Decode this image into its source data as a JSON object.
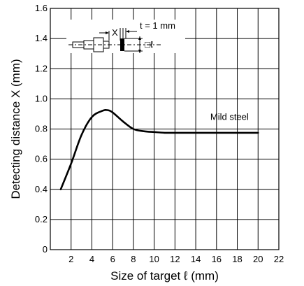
{
  "chart_data": {
    "type": "line",
    "xlabel": "Size of target ℓ (mm)",
    "ylabel": "Detecting distance X (mm)",
    "xlim": [
      0,
      22
    ],
    "ylim": [
      0,
      1.6
    ],
    "xticks": [
      2,
      4,
      6,
      8,
      10,
      12,
      14,
      16,
      18,
      20,
      22
    ],
    "yticks": [
      0,
      0.2,
      0.4,
      0.6,
      0.8,
      1.0,
      1.2,
      1.4,
      1.6
    ],
    "xtick_labels": [
      "2",
      "4",
      "6",
      "8",
      "10",
      "12",
      "14",
      "16",
      "18",
      "20",
      "22"
    ],
    "ytick_labels": [
      "0",
      "0.2",
      "0.4",
      "0.6",
      "0.8",
      "1.0",
      "1.2",
      "1.4",
      "1.6"
    ],
    "grid": true,
    "series": [
      {
        "name": "Mild steel",
        "x": [
          1.0,
          2.0,
          3.0,
          4.0,
          5.0,
          5.5,
          6.0,
          7.0,
          8.0,
          9.0,
          10.0,
          11.0,
          12.0,
          14.0,
          16.0,
          18.0,
          20.0
        ],
        "y": [
          0.4,
          0.57,
          0.76,
          0.88,
          0.92,
          0.925,
          0.91,
          0.85,
          0.8,
          0.785,
          0.78,
          0.775,
          0.775,
          0.775,
          0.775,
          0.775,
          0.775
        ]
      }
    ],
    "annotations": {
      "x_label": "X",
      "thickness_label": "t = 1 mm",
      "target_size_label": "□ℓ"
    }
  }
}
